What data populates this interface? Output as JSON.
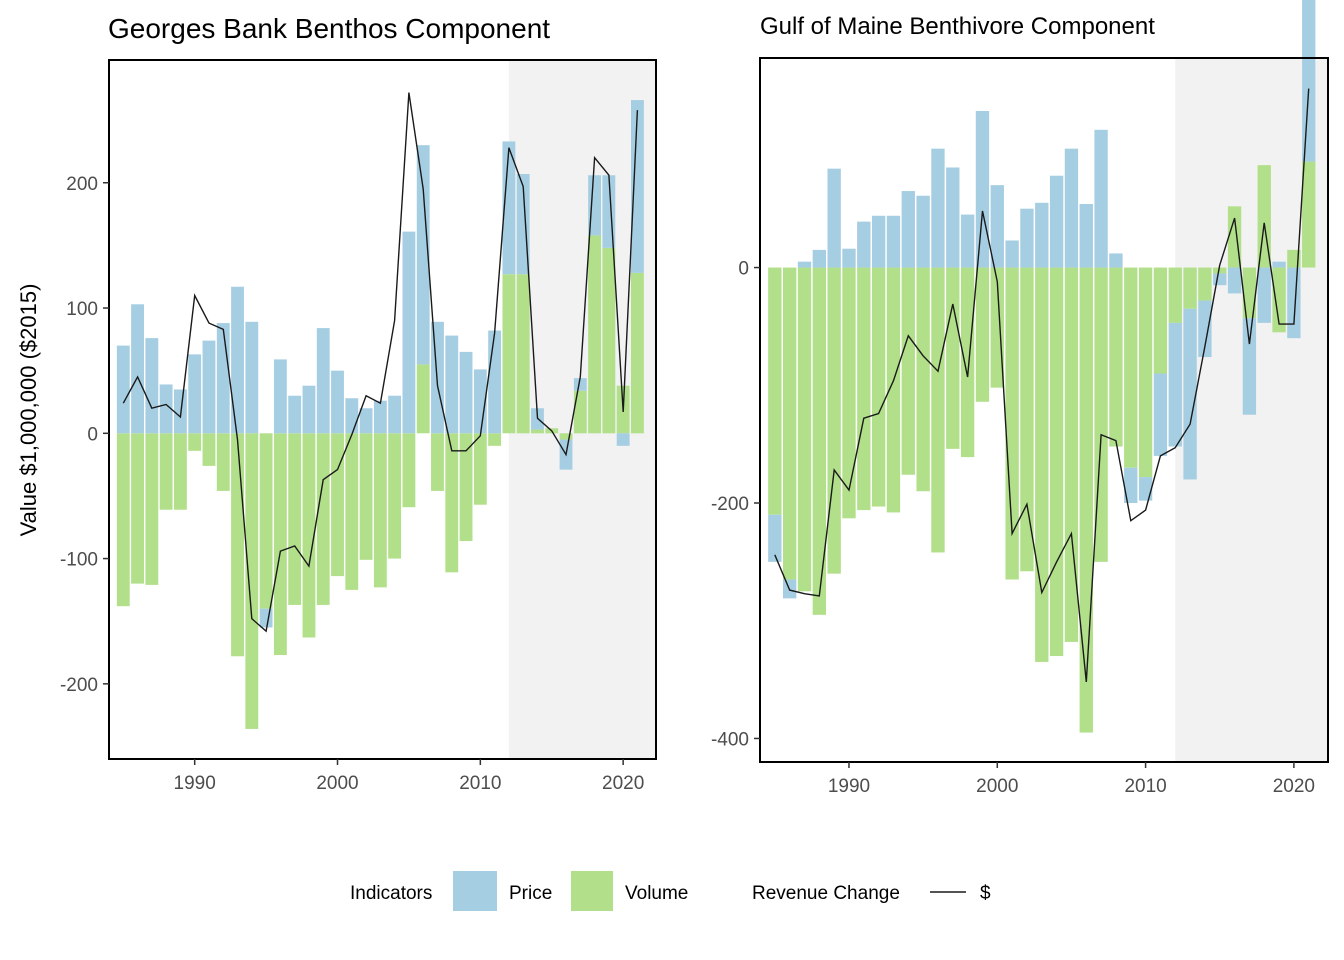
{
  "ylabel": "Value $1,000,000 ($2015)",
  "colors": {
    "price": "#a6cee3",
    "volume": "#b2df8a",
    "line": "#1a1a1a",
    "shade": "#f2f2f2"
  },
  "legend": {
    "indicators_title": "Indicators",
    "price_label": "Price",
    "volume_label": "Volume",
    "revenue_title": "Revenue Change",
    "dollar_label": "$"
  },
  "chart_data": [
    {
      "type": "bar",
      "title": "Georges Bank Benthos Component",
      "xlabel": "",
      "ylabel": "Value $1,000,000 ($2015)",
      "xlim": [
        1984,
        2022.3
      ],
      "ylim": [
        -260,
        298
      ],
      "xticks": [
        1990,
        2000,
        2010,
        2020
      ],
      "yticks": [
        -200,
        -100,
        0,
        100,
        200
      ],
      "shaded_from": 2012,
      "x": [
        1985,
        1986,
        1987,
        1988,
        1989,
        1990,
        1991,
        1992,
        1993,
        1994,
        1995,
        1996,
        1997,
        1998,
        1999,
        2000,
        2001,
        2002,
        2003,
        2004,
        2005,
        2006,
        2007,
        2008,
        2009,
        2010,
        2011,
        2012,
        2013,
        2014,
        2015,
        2016,
        2017,
        2018,
        2019,
        2020,
        2021
      ],
      "series": [
        {
          "name": "Price",
          "values": [
            70,
            103,
            76,
            39,
            35,
            63,
            74,
            88,
            117,
            89,
            -15,
            59,
            30,
            38,
            84,
            50,
            28,
            20,
            26,
            30,
            161,
            175,
            89,
            78,
            65,
            51,
            82,
            106,
            80,
            17,
            0,
            -24,
            10,
            48,
            58,
            -10,
            138
          ]
        },
        {
          "name": "Volume",
          "values": [
            -138,
            -120,
            -121,
            -61,
            -61,
            -14,
            -26,
            -46,
            -178,
            -236,
            -140,
            -177,
            -137,
            -163,
            -137,
            -114,
            -125,
            -101,
            -123,
            -100,
            -59,
            55,
            -46,
            -111,
            -86,
            -57,
            -10,
            127,
            127,
            3,
            4,
            -5,
            34,
            158,
            148,
            38,
            128
          ]
        },
        {
          "name": "$",
          "values": [
            24,
            45,
            20,
            23,
            13,
            110,
            88,
            83,
            -5,
            -148,
            -158,
            -94,
            -90,
            -106,
            -37,
            -29,
            -1,
            30,
            24,
            90,
            272,
            195,
            38,
            -14,
            -14,
            -2,
            80,
            228,
            197,
            12,
            2,
            -17,
            45,
            220,
            206,
            17,
            258
          ]
        }
      ]
    },
    {
      "type": "bar",
      "title": "Gulf of Maine Benthivore Component",
      "xlabel": "",
      "ylabel": "",
      "xlim": [
        1984,
        2022.3
      ],
      "ylim": [
        -420,
        178
      ],
      "xticks": [
        1990,
        2000,
        2010,
        2020
      ],
      "yticks": [
        -400,
        -200,
        0
      ],
      "shaded_from": 2012,
      "x": [
        1985,
        1986,
        1987,
        1988,
        1989,
        1990,
        1991,
        1992,
        1993,
        1994,
        1995,
        1996,
        1997,
        1998,
        1999,
        2000,
        2001,
        2002,
        2003,
        2004,
        2005,
        2006,
        2007,
        2008,
        2009,
        2010,
        2011,
        2012,
        2013,
        2014,
        2015,
        2016,
        2017,
        2018,
        2019,
        2020,
        2021
      ],
      "series": [
        {
          "name": "Price",
          "values": [
            -40,
            -16,
            5,
            15,
            84,
            16,
            39,
            44,
            44,
            65,
            61,
            101,
            85,
            45,
            133,
            70,
            23,
            50,
            55,
            78,
            101,
            54,
            117,
            12,
            -30,
            -20,
            -70,
            -105,
            -145,
            -48,
            -10,
            -22,
            -82,
            -47,
            5,
            -60,
            140
          ]
        },
        {
          "name": "Volume",
          "values": [
            -210,
            -265,
            -275,
            -295,
            -260,
            -213,
            -206,
            -203,
            -208,
            -176,
            -190,
            -242,
            -154,
            -161,
            -114,
            -102,
            -265,
            -258,
            -335,
            -330,
            -318,
            -395,
            -250,
            -152,
            -170,
            -178,
            -90,
            -47,
            -35,
            -28,
            -5,
            52,
            -43,
            87,
            -55,
            15,
            90
          ]
        },
        {
          "name": "$",
          "values": [
            -244,
            -274,
            -277,
            -279,
            -172,
            -189,
            -128,
            -124,
            -96,
            -58,
            -75,
            -88,
            -31,
            -93,
            48,
            -12,
            -226,
            -201,
            -276,
            -250,
            -226,
            -352,
            -142,
            -147,
            -215,
            -206,
            -160,
            -153,
            -133,
            -67,
            2,
            42,
            -65,
            38,
            -48,
            -48,
            152
          ]
        }
      ]
    }
  ]
}
